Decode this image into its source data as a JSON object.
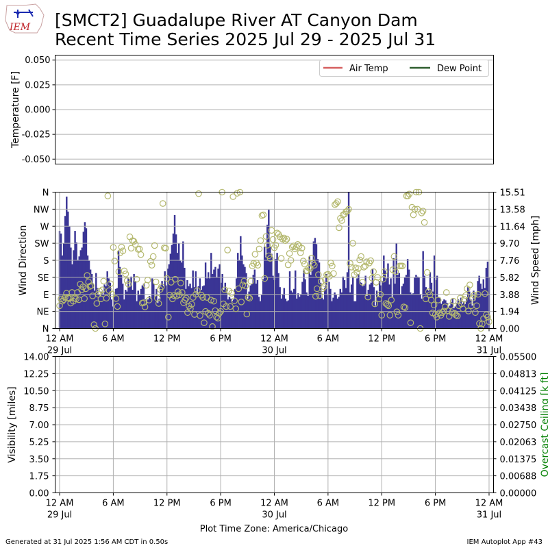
{
  "header": {
    "title_line1": "[SMCT2] Guadalupe River  AT Canyon Dam",
    "title_line2": "Recent Time Series 2025 Jul 29 - 2025 Jul 31",
    "logo_text": "IEM"
  },
  "footer": {
    "generated": "Generated at 31 Jul 2025 1:56 AM CDT in 0.50s",
    "app": "IEM Autoplot App #43"
  },
  "colors": {
    "air_temp": "#d65f5f",
    "dew_point": "#2e5d2e",
    "wind_speed_bar": "#3a3595",
    "wind_dir_marker": "#b4b86e",
    "ceiling_axis": "#008000",
    "grid": "#b0b0b0"
  },
  "chart_data": [
    {
      "type": "line",
      "ylabel": "Temperature [F]",
      "ylim": [
        -0.055,
        0.055
      ],
      "yticks": [
        "0.050",
        "0.025",
        "0.000",
        "-0.025",
        "-0.050"
      ],
      "ytick_values": [
        0.05,
        0.025,
        0,
        -0.025,
        -0.05
      ],
      "grid": true,
      "legend_position": "top-right",
      "series": [
        {
          "name": "Air Temp",
          "values": []
        },
        {
          "name": "Dew Point",
          "values": []
        }
      ]
    },
    {
      "type": "bar",
      "ylabel": "Wind Direction",
      "y2label": "Wind Speed [mph]",
      "direction_ticks": [
        "N",
        "NE",
        "E",
        "SE",
        "S",
        "SW",
        "W",
        "NW",
        "N"
      ],
      "speed_ticks": [
        "0.00",
        "1.94",
        "3.88",
        "5.82",
        "7.76",
        "9.70",
        "11.64",
        "13.58",
        "15.51"
      ],
      "speed_range": [
        0,
        15.51
      ],
      "direction_range": [
        0,
        360
      ],
      "xlim_hours": [
        -0.5,
        48.5
      ],
      "xticks": [
        {
          "h": 0,
          "label": "12 AM",
          "date": "29 Jul"
        },
        {
          "h": 6,
          "label": "6 AM",
          "date": ""
        },
        {
          "h": 12,
          "label": "12 PM",
          "date": ""
        },
        {
          "h": 18,
          "label": "6 PM",
          "date": ""
        },
        {
          "h": 24,
          "label": "12 AM",
          "date": "30 Jul"
        },
        {
          "h": 30,
          "label": "6 AM",
          "date": ""
        },
        {
          "h": 36,
          "label": "12 PM",
          "date": ""
        },
        {
          "h": 42,
          "label": "6 PM",
          "date": ""
        },
        {
          "h": 48,
          "label": "12 AM",
          "date": "31 Jul"
        }
      ],
      "grid": true,
      "wind_speed_mph": [
        11.1,
        10.8,
        8.3,
        9.7,
        12.8,
        15,
        13.3,
        11.6,
        9.2,
        7.3,
        8.9,
        11.1,
        9.8,
        7.8,
        8.2,
        8.9,
        9.2,
        11,
        12.1,
        11.4,
        8.3,
        7.7,
        6.7,
        6.2,
        5.1,
        4.3,
        6.3,
        4.6,
        3.8,
        3.7,
        4.2,
        3.8,
        5,
        4.8,
        6.5,
        5.7,
        5.2,
        3.3,
        2.5,
        3.8,
        4.5,
        4.6,
        8.8,
        7,
        6.1,
        5.1,
        3.3,
        4.4,
        4.2,
        5.7,
        4.8,
        5.9,
        4.4,
        6.2,
        5.4,
        3.1,
        4.3,
        3.8,
        4.5,
        4.9,
        5.1,
        3.3,
        2.8,
        3.3,
        3.7,
        3.4,
        5.7,
        5.1,
        3.6,
        4.5,
        2.9,
        3.4,
        4.9,
        5.4,
        4.8,
        6.5,
        4.9,
        6.8,
        7.3,
        8.5,
        9.5,
        10.8,
        12.9,
        10.7,
        8.6,
        9.7,
        7.7,
        7.5,
        9.9,
        6.9,
        4.5,
        5.5,
        4.8,
        5.1,
        4.6,
        6.6,
        4.7,
        6.5,
        3.8,
        4.8,
        5.7,
        4.4,
        4.8,
        4.9,
        7.5,
        5.7,
        6.4,
        5.7,
        8.6,
        6.2,
        6.7,
        7,
        5.8,
        6.8,
        7.3,
        5.2,
        6.2,
        4.4,
        5.2,
        4.5,
        3.3,
        3.6,
        3.4,
        3.1,
        3.3,
        4.5,
        5.7,
        8.6,
        7.8,
        10.5,
        8.3,
        7.3,
        7,
        6.3,
        3.4,
        4.2,
        4.9,
        5.1,
        6.1,
        6.7,
        5.1,
        5.5,
        3.6,
        3.1,
        3.8,
        5.6,
        9.3,
        8.1,
        11.8,
        13.5,
        9.3,
        8.5,
        6,
        5.5,
        7.9,
        8.6,
        6.3,
        4.7,
        3.4,
        3.9,
        4.6,
        3.4,
        3.1,
        3.2,
        6.5,
        4.3,
        4.1,
        4.5,
        6.6,
        3.4,
        4,
        3.6,
        3.9,
        5.3,
        6.6,
        5.6,
        4.1,
        3.7,
        8.2,
        6.1,
        7.6,
        9.9,
        10.3,
        9.6,
        7.9,
        7.5,
        5.2,
        3.5,
        3.3,
        4.6,
        6.2,
        3.8,
        5.3,
        4.5,
        3.1,
        3.5,
        4.1,
        3.8,
        3.4,
        3.6,
        4.5,
        4.1,
        5.9,
        5.5,
        4.6,
        6.4,
        15.5,
        4.1,
        5,
        5.9,
        3.1,
        3.1,
        5.7,
        6.2,
        5.3,
        5.2,
        4.8,
        4.9,
        6,
        3.7,
        4.4,
        5,
        5.2,
        6.8,
        4.7,
        2.6,
        4.3,
        3.6,
        5.4,
        4.9,
        5.4,
        8.3,
        6.6,
        5.7,
        7.4,
        5,
        5.7,
        3.6,
        8,
        5.1,
        9.7,
        6.1,
        6.3,
        3.9,
        4.8,
        5.1,
        5.8,
        6.1,
        7.9,
        6.7,
        4.1,
        3.9,
        4,
        5.8,
        6.1,
        5.9,
        5.8,
        3.9,
        3.4,
        8.8,
        6,
        4.7,
        4.4,
        4.3,
        6.4,
        5.2,
        4.2,
        8.3,
        5.5,
        6,
        3.6,
        3.5,
        2.8,
        3.1,
        3.3,
        3.2,
        2.9,
        2.4,
        2.6,
        3,
        3.4,
        2.3,
        2.5,
        2.9,
        3.3,
        2.8,
        3.5,
        2.8,
        3.1,
        2.8,
        3.5,
        4.7,
        4.2,
        3.3,
        2.6,
        4.3,
        3.2,
        3.9,
        5.4,
        6,
        5.1,
        4.5,
        5.6,
        4.6,
        6.9,
        7.6,
        5.8
      ],
      "wind_direction_deg": [
        60,
        78,
        72,
        76,
        82,
        93,
        81,
        79,
        67,
        95,
        72,
        80,
        78,
        95,
        76,
        117,
        102,
        110,
        79,
        105,
        140,
        123,
        111,
        113,
        86,
        10,
        0,
        66,
        90,
        98,
        78,
        102,
        125,
        12,
        80,
        350,
        100,
        118,
        91,
        214,
        178,
        79,
        58,
        150,
        200,
        215,
        205,
        152,
        144,
        126,
        117,
        242,
        212,
        232,
        230,
        222,
        130,
        209,
        210,
        195,
        67,
        68,
        57,
        114,
        128,
        75,
        177,
        167,
        190,
        219,
        123,
        80,
        66,
        103,
        110,
        330,
        213,
        212,
        132,
        30,
        88,
        122,
        78,
        87,
        130,
        86,
        97,
        89,
        120,
        95,
        68,
        75,
        80,
        42,
        59,
        52,
        64,
        82,
        37,
        90,
        100,
        356,
        34,
        88,
        82,
        15,
        45,
        82,
        40,
        35,
        75,
        5,
        72,
        47,
        30,
        27,
        40,
        45,
        360,
        65,
        102,
        58,
        207,
        99,
        58,
        93,
        348,
        73,
        52,
        357,
        105,
        360,
        70,
        115,
        125,
        112,
        38,
        82,
        80,
        125,
        165,
        172,
        196,
        173,
        167,
        210,
        232,
        298,
        300,
        132,
        243,
        220,
        192,
        185,
        259,
        235,
        213,
        220,
        252,
        249,
        242,
        185,
        236,
        239,
        232,
        236,
        168,
        198,
        180,
        215,
        218,
        210,
        215,
        222,
        218,
        200,
        212,
        178,
        170,
        152,
        152,
        160,
        158,
        186,
        172,
        167,
        85,
        105,
        142,
        87,
        124,
        105,
        110,
        128,
        142,
        143,
        138,
        173,
        165,
        145,
        327,
        330,
        335,
        266,
        291,
        285,
        300,
        302,
        308,
        310,
        315,
        172,
        162,
        225,
        142,
        160,
        148,
        158,
        181,
        190,
        122,
        162,
        165,
        176,
        83,
        173,
        179,
        133,
        150,
        65,
        122,
        135,
        78,
        90,
        35,
        130,
        150,
        66,
        63,
        60,
        35,
        75,
        155,
        190,
        150,
        44,
        35,
        165,
        165,
        165,
        57,
        55,
        350,
        350,
        355,
        15,
        320,
        300,
        315,
        360,
        315,
        365,
        0,
        305,
        310,
        280,
        78,
        148,
        97,
        89,
        75,
        41,
        62,
        37,
        30,
        75,
        41,
        35,
        42,
        46,
        57,
        95,
        47,
        32,
        60,
        42,
        72,
        40,
        35,
        33,
        60,
        80,
        65,
        52,
        77,
        87,
        105,
        46,
        115,
        60,
        80,
        88,
        42,
        60,
        90,
        13,
        0,
        12,
        26,
        92,
        36,
        30,
        18
      ]
    },
    {
      "type": "line",
      "ylabel": "Visibility [miles]",
      "y2label": "Overcast Ceiling [k ft]",
      "yticks": [
        "14.00",
        "12.25",
        "10.50",
        "8.75",
        "7.00",
        "5.25",
        "3.50",
        "1.75",
        "0.00"
      ],
      "y2ticks": [
        "0.05500",
        "0.04813",
        "0.04125",
        "0.03438",
        "0.02750",
        "0.02063",
        "0.01375",
        "0.00688",
        "0.00000"
      ],
      "ylim": [
        0,
        14
      ],
      "y2lim": [
        0,
        0.055
      ],
      "xlabel": "Plot Time Zone: America/Chicago",
      "grid": true,
      "series": [
        {
          "name": "Visibility",
          "values": []
        },
        {
          "name": "Overcast Ceiling",
          "values": []
        }
      ]
    }
  ]
}
